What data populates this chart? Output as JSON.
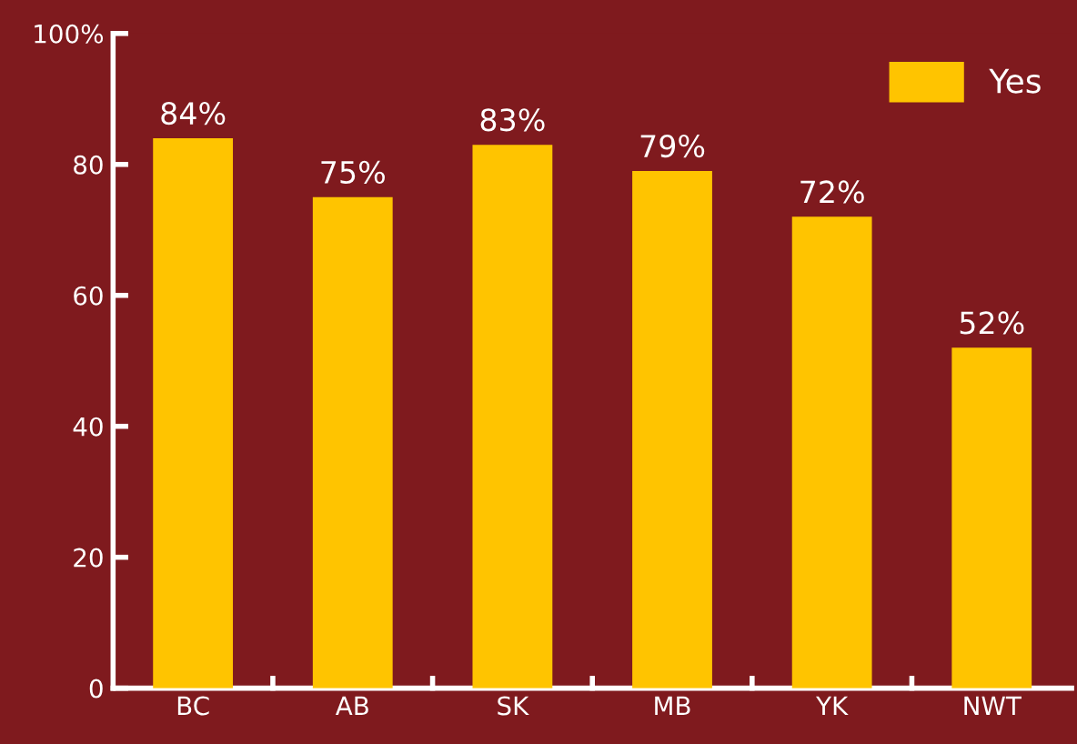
{
  "chart_data": {
    "type": "bar",
    "categories": [
      "BC",
      "AB",
      "SK",
      "MB",
      "YK",
      "NWT"
    ],
    "series": [
      {
        "name": "Yes",
        "color": "#ffc400",
        "values": [
          84,
          75,
          83,
          79,
          72,
          52
        ],
        "value_labels": [
          "84%",
          "75%",
          "83%",
          "79%",
          "72%",
          "52%"
        ]
      }
    ],
    "ylim": [
      0,
      100
    ],
    "yticks": [
      0,
      20,
      40,
      60,
      80,
      {
        "value": 100,
        "label": "100%"
      }
    ],
    "grid": false,
    "legend": "top right"
  }
}
